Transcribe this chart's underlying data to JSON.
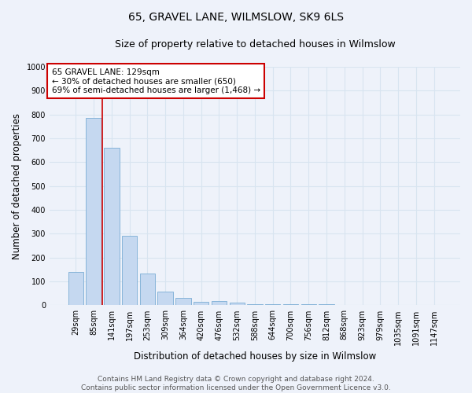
{
  "title": "65, GRAVEL LANE, WILMSLOW, SK9 6LS",
  "subtitle": "Size of property relative to detached houses in Wilmslow",
  "xlabel": "Distribution of detached houses by size in Wilmslow",
  "ylabel": "Number of detached properties",
  "categories": [
    "29sqm",
    "85sqm",
    "141sqm",
    "197sqm",
    "253sqm",
    "309sqm",
    "364sqm",
    "420sqm",
    "476sqm",
    "532sqm",
    "588sqm",
    "644sqm",
    "700sqm",
    "756sqm",
    "812sqm",
    "868sqm",
    "923sqm",
    "979sqm",
    "1035sqm",
    "1091sqm",
    "1147sqm"
  ],
  "values": [
    140,
    785,
    660,
    293,
    133,
    58,
    30,
    15,
    17,
    12,
    5,
    5,
    5,
    5,
    5,
    0,
    0,
    0,
    0,
    0,
    0
  ],
  "bar_color": "#c5d8f0",
  "bar_edge_color": "#7aadd4",
  "grid_color": "#d8e4f0",
  "background_color": "#eef2fa",
  "vline_x_index": 1.5,
  "property_label": "65 GRAVEL LANE: 129sqm",
  "annotation_line1": "← 30% of detached houses are smaller (650)",
  "annotation_line2": "69% of semi-detached houses are larger (1,468) →",
  "annotation_box_color": "#ffffff",
  "annotation_border_color": "#cc0000",
  "vline_color": "#cc0000",
  "ylim": [
    0,
    1000
  ],
  "yticks": [
    0,
    100,
    200,
    300,
    400,
    500,
    600,
    700,
    800,
    900,
    1000
  ],
  "title_fontsize": 10,
  "subtitle_fontsize": 9,
  "axis_label_fontsize": 8.5,
  "tick_fontsize": 7,
  "annotation_fontsize": 7.5,
  "footer_fontsize": 6.5,
  "footer_line1": "Contains HM Land Registry data © Crown copyright and database right 2024.",
  "footer_line2": "Contains public sector information licensed under the Open Government Licence v3.0."
}
